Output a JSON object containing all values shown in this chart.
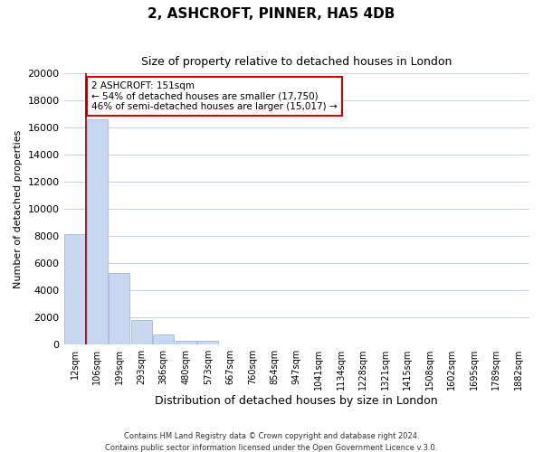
{
  "title": "2, ASHCROFT, PINNER, HA5 4DB",
  "subtitle": "Size of property relative to detached houses in London",
  "xlabel": "Distribution of detached houses by size in London",
  "ylabel": "Number of detached properties",
  "categories": [
    "12sqm",
    "106sqm",
    "199sqm",
    "293sqm",
    "386sqm",
    "480sqm",
    "573sqm",
    "667sqm",
    "760sqm",
    "854sqm",
    "947sqm",
    "1041sqm",
    "1134sqm",
    "1228sqm",
    "1321sqm",
    "1415sqm",
    "1508sqm",
    "1602sqm",
    "1695sqm",
    "1789sqm",
    "1882sqm"
  ],
  "values": [
    8100,
    16600,
    5300,
    1800,
    750,
    300,
    250,
    0,
    0,
    0,
    0,
    0,
    0,
    0,
    0,
    0,
    0,
    0,
    0,
    0,
    0
  ],
  "bar_color": "#c8d8f0",
  "bar_edge_color": "#a0b8d8",
  "marker_line_color": "#8b0000",
  "ylim": [
    0,
    20000
  ],
  "yticks": [
    0,
    2000,
    4000,
    6000,
    8000,
    10000,
    12000,
    14000,
    16000,
    18000,
    20000
  ],
  "annotation_title": "2 ASHCROFT: 151sqm",
  "annotation_line1": "← 54% of detached houses are smaller (17,750)",
  "annotation_line2": "46% of semi-detached houses are larger (15,017) →",
  "annotation_box_color": "#ffffff",
  "annotation_box_edge": "#cc0000",
  "footer1": "Contains HM Land Registry data © Crown copyright and database right 2024.",
  "footer2": "Contains public sector information licensed under the Open Government Licence v.3.0.",
  "bg_color": "#ffffff",
  "grid_color": "#c8d4e8"
}
